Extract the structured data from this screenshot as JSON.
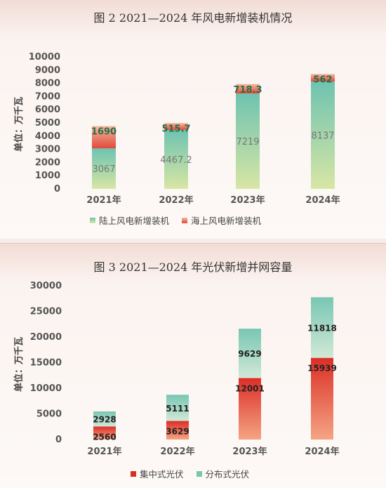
{
  "figures": [
    {
      "title": "图 2  2021—2024 年风电新增装机情况",
      "chart_data": {
        "type": "bar",
        "stacked": true,
        "categories": [
          "2021年",
          "2022年",
          "2023年",
          "2024年"
        ],
        "ylabel": "单位：万千瓦",
        "ylim": [
          0,
          10000
        ],
        "yticks": [
          0,
          1000,
          2000,
          3000,
          4000,
          5000,
          6000,
          7000,
          8000,
          9000,
          10000
        ],
        "series": [
          {
            "name": "陆上风电新增装机",
            "values": [
              3067,
              4467.2,
              7219,
              8137
            ],
            "labels": [
              "3067",
              "4467.2",
              "7219",
              "8137"
            ]
          },
          {
            "name": "海上风电新增装机",
            "values": [
              1690,
              515.7,
              718.3,
              562
            ],
            "labels": [
              "1690",
              "515.7",
              "718.3",
              "562"
            ]
          }
        ],
        "legend": "bottom"
      },
      "colors": {
        "onshore_top": "#6ec3b1",
        "onshore_bottom": "#d8e6a4",
        "offshore_top": "#f2b99e",
        "offshore_bottom": "#e04a3a"
      }
    },
    {
      "title": "图 3  2021—2024 年光伏新增并网容量",
      "chart_data": {
        "type": "bar",
        "stacked": true,
        "categories": [
          "2021年",
          "2022年",
          "2023年",
          "2024年"
        ],
        "ylabel": "单位：万千瓦",
        "ylim": [
          0,
          30000
        ],
        "yticks": [
          0,
          5000,
          10000,
          15000,
          20000,
          25000,
          30000
        ],
        "series": [
          {
            "name": "集中式光伏",
            "values": [
              2560,
              3629,
              12001,
              15939
            ],
            "labels": [
              "2560",
              "3629",
              "12001",
              "15939"
            ]
          },
          {
            "name": "分布式光伏",
            "values": [
              2928,
              5111,
              9629,
              11818
            ],
            "labels": [
              "2928",
              "5111",
              "9629",
              "11818"
            ]
          }
        ],
        "legend": "bottom"
      },
      "colors": {
        "central_top": "#dc2e26",
        "central_bottom": "#f4a584",
        "distributed_top": "#78c7b3",
        "distributed_bottom": "#d2e8d6"
      }
    }
  ]
}
